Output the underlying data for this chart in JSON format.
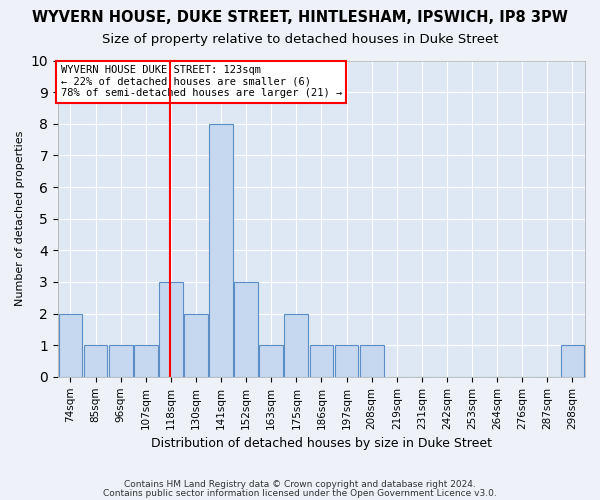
{
  "title": "WYVERN HOUSE, DUKE STREET, HINTLESHAM, IPSWICH, IP8 3PW",
  "subtitle": "Size of property relative to detached houses in Duke Street",
  "xlabel": "Distribution of detached houses by size in Duke Street",
  "ylabel": "Number of detached properties",
  "footnote1": "Contains HM Land Registry data © Crown copyright and database right 2024.",
  "footnote2": "Contains public sector information licensed under the Open Government Licence v3.0.",
  "bins": [
    "74sqm",
    "85sqm",
    "96sqm",
    "107sqm",
    "118sqm",
    "130sqm",
    "141sqm",
    "152sqm",
    "163sqm",
    "175sqm",
    "186sqm",
    "197sqm",
    "208sqm",
    "219sqm",
    "231sqm",
    "242sqm",
    "253sqm",
    "264sqm",
    "276sqm",
    "287sqm",
    "298sqm"
  ],
  "values": [
    2,
    1,
    1,
    1,
    3,
    2,
    8,
    3,
    1,
    2,
    1,
    1,
    1,
    0,
    0,
    0,
    0,
    0,
    0,
    0,
    1
  ],
  "bar_color": "#c5d8f0",
  "bar_edge_color": "#5b8ec4",
  "red_line_index": 4,
  "annotation_title": "WYVERN HOUSE DUKE STREET: 123sqm",
  "annotation_line1": "← 22% of detached houses are smaller (6)",
  "annotation_line2": "78% of semi-detached houses are larger (21) →",
  "ylim": [
    0,
    10
  ],
  "yticks": [
    0,
    1,
    2,
    3,
    4,
    5,
    6,
    7,
    8,
    9,
    10
  ],
  "bg_color": "#dde8f4",
  "fig_bg_color": "#eef2f8",
  "grid_color": "#ffffff",
  "title_fontsize": 10.5,
  "subtitle_fontsize": 9.5
}
